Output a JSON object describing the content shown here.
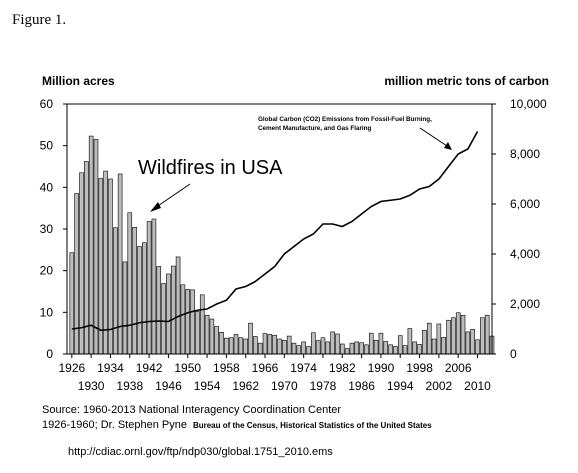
{
  "figure_label": "Figure 1.",
  "chart_data": {
    "type": "bar",
    "title": "",
    "left_axis_label": "Million acres",
    "right_axis_label": "million metric tons of carbon",
    "left_ylim": [
      0,
      60
    ],
    "left_ticks": [
      "0",
      "10",
      "20",
      "30",
      "40",
      "50",
      "60"
    ],
    "right_ylim": [
      0,
      10000
    ],
    "right_ticks": [
      "0",
      "2,000",
      "4,000",
      "6,000",
      "8,000",
      "10,000"
    ],
    "xlim": [
      1925,
      2013
    ],
    "x_ticks_upper": [
      "1926",
      "1934",
      "1942",
      "1950",
      "1958",
      "1966",
      "1974",
      "1982",
      "1990",
      "1998",
      "2006"
    ],
    "x_ticks_lower": [
      "1930",
      "1938",
      "1946",
      "1954",
      "1962",
      "1970",
      "1978",
      "1986",
      "1994",
      "2002",
      "2010"
    ],
    "bar_annotation": "Wildfires in USA",
    "line_annotation_line1": "Global Carbon (CO2) Emissions from Fossil-Fuel Burning,",
    "line_annotation_line2": "Cement Manufacture, and Gas Flaring",
    "series": [
      {
        "axis": "left",
        "style": "bar",
        "x": [
          1926,
          1927,
          1928,
          1929,
          1930,
          1931,
          1932,
          1933,
          1934,
          1935,
          1936,
          1937,
          1938,
          1939,
          1940,
          1941,
          1942,
          1943,
          1944,
          1945,
          1946,
          1947,
          1948,
          1949,
          1950,
          1951,
          1952,
          1953,
          1954,
          1955,
          1956,
          1957,
          1958,
          1959,
          1960,
          1961,
          1962,
          1963,
          1964,
          1965,
          1966,
          1967,
          1968,
          1969,
          1970,
          1971,
          1972,
          1973,
          1974,
          1975,
          1976,
          1977,
          1978,
          1979,
          1980,
          1981,
          1982,
          1983,
          1984,
          1985,
          1986,
          1987,
          1988,
          1989,
          1990,
          1991,
          1992,
          1993,
          1994,
          1995,
          1996,
          1997,
          1998,
          1999,
          2000,
          2001,
          2002,
          2003,
          2004,
          2005,
          2006,
          2007,
          2008,
          2009,
          2010,
          2011,
          2012,
          2013
        ],
        "values": [
          24.3,
          38.5,
          43.5,
          46.2,
          52.3,
          51.5,
          42.1,
          43.9,
          42.0,
          30.3,
          43.2,
          22.1,
          33.9,
          30.4,
          25.8,
          26.7,
          31.8,
          32.4,
          21.0,
          16.9,
          19.2,
          21.1,
          23.3,
          16.6,
          15.5,
          15.4,
          10.2,
          14.2,
          9.3,
          8.4,
          6.6,
          5.2,
          3.8,
          3.9,
          4.7,
          3.9,
          3.6,
          7.4,
          4.2,
          2.6,
          4.9,
          4.7,
          4.5,
          3.6,
          3.3,
          4.3,
          2.6,
          2.0,
          2.9,
          1.8,
          5.1,
          3.2,
          3.9,
          2.9,
          5.3,
          4.8,
          2.4,
          1.3,
          2.6,
          2.9,
          2.7,
          2.2,
          5.0,
          3.3,
          5.0,
          3.0,
          2.2,
          1.8,
          4.4,
          2.0,
          6.1,
          2.9,
          2.3,
          5.7,
          7.4,
          3.6,
          7.2,
          4.0,
          8.1,
          8.7,
          9.9,
          9.3,
          5.3,
          5.9,
          3.4,
          8.7,
          9.3,
          4.3
        ]
      },
      {
        "axis": "right",
        "style": "line",
        "x": [
          1926,
          1928,
          1930,
          1932,
          1934,
          1936,
          1938,
          1940,
          1942,
          1944,
          1946,
          1948,
          1950,
          1952,
          1954,
          1956,
          1958,
          1960,
          1962,
          1964,
          1966,
          1968,
          1970,
          1972,
          1974,
          1976,
          1978,
          1980,
          1982,
          1984,
          1986,
          1988,
          1990,
          1992,
          1994,
          1996,
          1998,
          2000,
          2002,
          2004,
          2006,
          2008,
          2010
        ],
        "values": [
          1000,
          1050,
          1150,
          950,
          980,
          1100,
          1150,
          1250,
          1300,
          1320,
          1300,
          1500,
          1650,
          1750,
          1800,
          2000,
          2150,
          2600,
          2700,
          2900,
          3200,
          3500,
          4000,
          4300,
          4600,
          4800,
          5200,
          5200,
          5100,
          5300,
          5600,
          5900,
          6100,
          6150,
          6200,
          6350,
          6600,
          6700,
          7000,
          7500,
          8000,
          8200,
          8900
        ]
      }
    ],
    "grid": false,
    "legend": "none"
  },
  "source_line1": "Source:  1960-2013 National Interagency Coordination Center",
  "source_line2": "1926-1960; Dr. Stephen Pyne",
  "source_line2_small": "Bureau of the Census, Historical Statistics of the United States",
  "url_text": "http://cdiac.ornl.gov/ftp/ndp030/global.1751_2010.ems"
}
